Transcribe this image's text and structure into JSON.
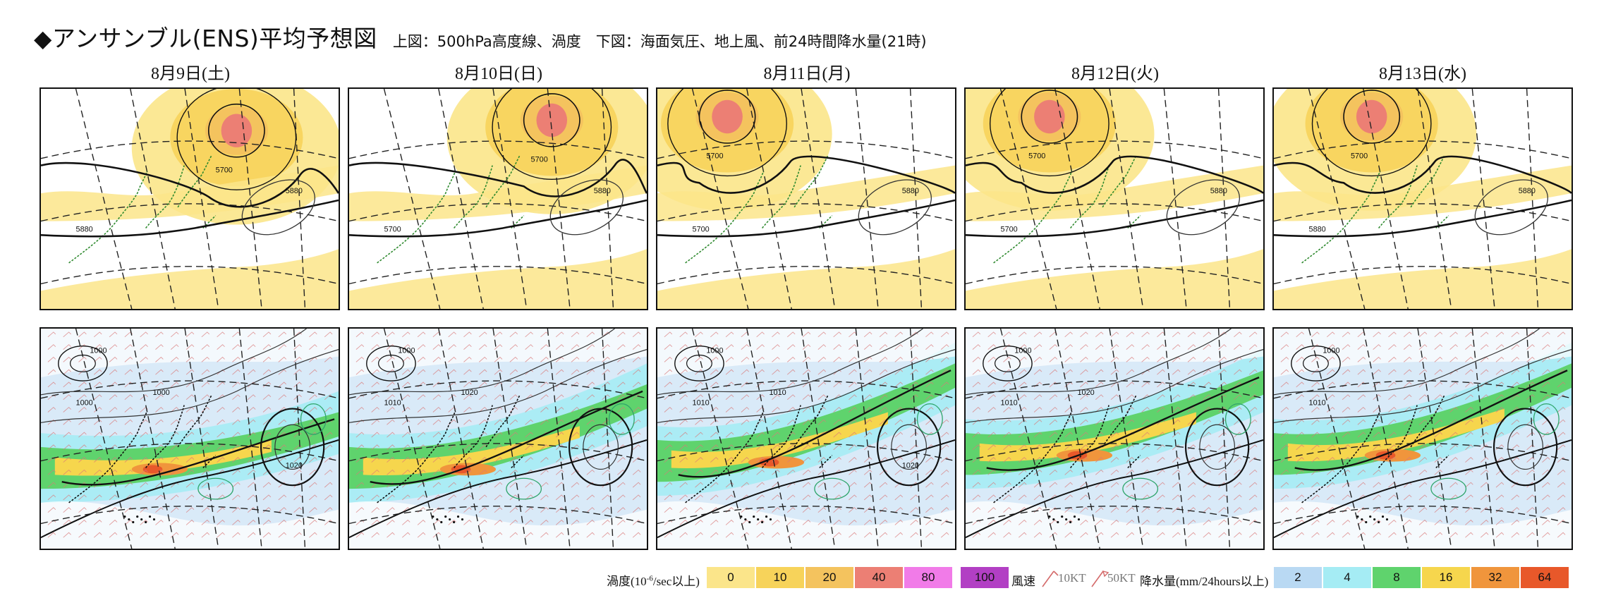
{
  "header": {
    "title": "◆アンサンブル(ENS)平均予想図",
    "subtitle": "上図：500hPa高度線、渦度　下図：海面気圧、地上風、前24時間降水量(21時)"
  },
  "dates": [
    "8月9日(土)",
    "8月10日(日)",
    "8月11日(月)",
    "8月12日(火)",
    "8月13日(水)"
  ],
  "upper_panels": [
    {
      "labels": [
        "5700",
        "5880",
        "5880"
      ]
    },
    {
      "labels": [
        "5700",
        "5700",
        "5880"
      ]
    },
    {
      "labels": [
        "5700",
        "5700",
        "5880"
      ]
    },
    {
      "labels": [
        "5700",
        "5700",
        "5880"
      ]
    },
    {
      "labels": [
        "5700",
        "5880",
        "5880"
      ]
    }
  ],
  "lower_panels": [
    {
      "labels": [
        "1000",
        "1000",
        "1000",
        "1020"
      ]
    },
    {
      "labels": [
        "1000",
        "1010",
        "1020"
      ]
    },
    {
      "labels": [
        "1000",
        "1010",
        "1010",
        "1020"
      ]
    },
    {
      "labels": [
        "1000",
        "1010",
        "1020"
      ]
    },
    {
      "labels": [
        "1000",
        "1010"
      ]
    }
  ],
  "legend": {
    "vorticity_label": "渦度(10",
    "vorticity_exp": "-6",
    "vorticity_unit": "/sec以上)",
    "vorticity_levels": [
      {
        "value": "0",
        "color": "#fbe58a"
      },
      {
        "value": "10",
        "color": "#f7d35a"
      },
      {
        "value": "20",
        "color": "#f4c35e"
      },
      {
        "value": "40",
        "color": "#ec7f74"
      },
      {
        "value": "80",
        "color": "#f17be8"
      },
      {
        "value": "100",
        "color": "#b23fc4"
      }
    ],
    "wind_label": "風速",
    "wind_10": "10KT",
    "wind_50": "50KT",
    "precip_label": "降水量(mm/24hours以上)",
    "precip_levels": [
      {
        "value": "2",
        "color": "#b9d9f3"
      },
      {
        "value": "4",
        "color": "#a5ecf4"
      },
      {
        "value": "8",
        "color": "#5fd36d"
      },
      {
        "value": "16",
        "color": "#f6d64d"
      },
      {
        "value": "32",
        "color": "#f0953c"
      },
      {
        "value": "64",
        "color": "#e8582a"
      }
    ]
  }
}
